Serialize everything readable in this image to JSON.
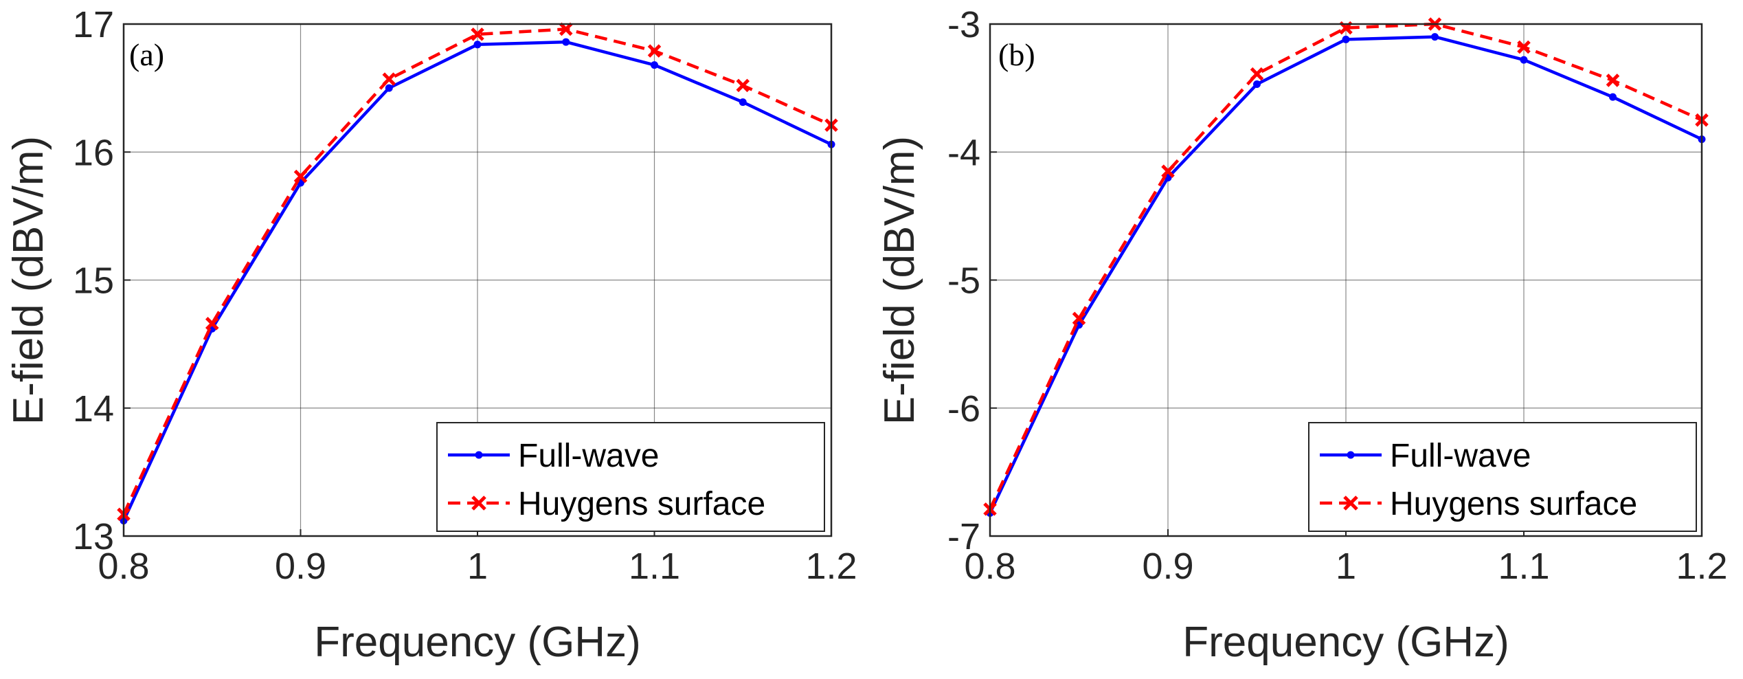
{
  "chart_data": [
    {
      "type": "line",
      "panel_label": "(a)",
      "xlabel": "Frequency (GHz)",
      "ylabel": "E-field (dBV/m)",
      "xlim": [
        0.8,
        1.2
      ],
      "ylim": [
        13,
        17
      ],
      "xticks": [
        "0.8",
        "0.9",
        "1",
        "1.1",
        "1.2"
      ],
      "yticks": [
        "13",
        "14",
        "15",
        "16",
        "17"
      ],
      "grid": true,
      "legend_position": "bottom-right",
      "x": [
        0.8,
        0.85,
        0.9,
        0.95,
        1.0,
        1.05,
        1.1,
        1.15,
        1.2
      ],
      "series": [
        {
          "name": "Full-wave",
          "color": "#0000ff",
          "style": "solid",
          "marker": "dot",
          "values": [
            13.12,
            14.62,
            15.76,
            16.5,
            16.84,
            16.86,
            16.68,
            16.39,
            16.06
          ]
        },
        {
          "name": "Huygens surface",
          "color": "#ff0000",
          "style": "dashed",
          "marker": "x",
          "values": [
            13.17,
            14.66,
            15.81,
            16.57,
            16.92,
            16.96,
            16.79,
            16.52,
            16.21
          ]
        }
      ]
    },
    {
      "type": "line",
      "panel_label": "(b)",
      "xlabel": "Frequency (GHz)",
      "ylabel": "E-field (dBV/m)",
      "xlim": [
        0.8,
        1.2
      ],
      "ylim": [
        -7,
        -3
      ],
      "xticks": [
        "0.8",
        "0.9",
        "1",
        "1.1",
        "1.2"
      ],
      "yticks": [
        "-7",
        "-6",
        "-5",
        "-4",
        "-3"
      ],
      "grid": true,
      "legend_position": "bottom-right",
      "x": [
        0.8,
        0.85,
        0.9,
        0.95,
        1.0,
        1.05,
        1.1,
        1.15,
        1.2
      ],
      "series": [
        {
          "name": "Full-wave",
          "color": "#0000ff",
          "style": "solid",
          "marker": "dot",
          "values": [
            -6.82,
            -5.35,
            -4.2,
            -3.47,
            -3.12,
            -3.1,
            -3.28,
            -3.57,
            -3.9
          ]
        },
        {
          "name": "Huygens surface",
          "color": "#ff0000",
          "style": "dashed",
          "marker": "x",
          "values": [
            -6.79,
            -5.3,
            -4.15,
            -3.39,
            -3.03,
            -3.0,
            -3.18,
            -3.44,
            -3.75
          ]
        }
      ]
    }
  ]
}
